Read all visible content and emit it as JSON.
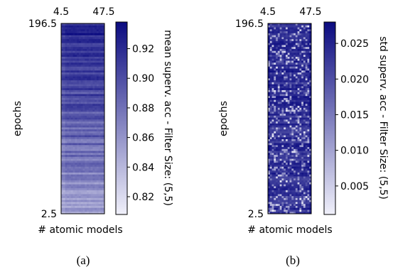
{
  "chart_data": [
    {
      "type": "heatmap",
      "panel_caption": "(a)",
      "title": "",
      "xlabel": "# atomic models",
      "ylabel": "epochs",
      "x_tick_labels": [
        "4.5",
        "47.5"
      ],
      "y_tick_labels": [
        "196.5",
        "2.5"
      ],
      "xlim": [
        4.5,
        47.5
      ],
      "ylim": [
        2.5,
        196.5
      ],
      "colorbar": {
        "label": "mean superv. acc - Filter Size: (5,5)",
        "ticks": [
          0.82,
          0.84,
          0.86,
          0.88,
          0.9,
          0.92
        ],
        "tick_labels": [
          "0.82",
          "0.84",
          "0.86",
          "0.88",
          "0.90",
          "0.92"
        ],
        "vmin": 0.808,
        "vmax": 0.938,
        "colormap": [
          "#f0f0fa",
          "#0b0b80"
        ]
      },
      "pattern": "row-banded"
    },
    {
      "type": "heatmap",
      "panel_caption": "(b)",
      "title": "",
      "xlabel": "# atomic models",
      "ylabel": "epochs",
      "x_tick_labels": [
        "4.5",
        "47.5"
      ],
      "y_tick_labels": [
        "196.5",
        "2.5"
      ],
      "xlim": [
        4.5,
        47.5
      ],
      "ylim": [
        2.5,
        196.5
      ],
      "colorbar": {
        "label": "std superv. acc - Filter Size: (5,5)",
        "ticks": [
          0.005,
          0.01,
          0.015,
          0.02,
          0.025
        ],
        "tick_labels": [
          "0.005",
          "0.010",
          "0.015",
          "0.020",
          "0.025"
        ],
        "vmin": 0.001,
        "vmax": 0.028,
        "colormap": [
          "#f0f0fa",
          "#0b0b80"
        ]
      },
      "pattern": "speckled"
    }
  ]
}
